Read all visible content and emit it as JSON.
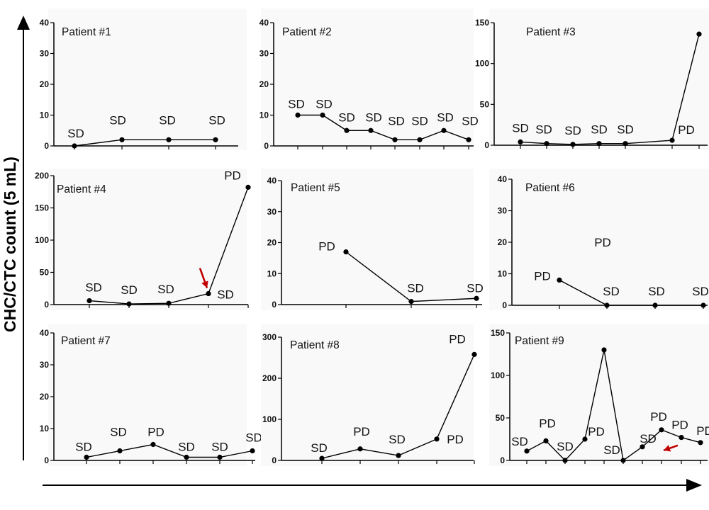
{
  "figure": {
    "ylabel": "CHC/CTC count (5 mL)",
    "colors": {
      "line": "#000000",
      "arrow": "#c00000",
      "panel_bg": "#f9f9f9"
    }
  },
  "chart_data": [
    {
      "type": "line",
      "title": "Patient #1",
      "ylim": [
        0,
        40
      ],
      "yticks": [
        0,
        10,
        20,
        30,
        40
      ],
      "x": [
        1,
        2,
        3,
        4
      ],
      "values": [
        0,
        2,
        2,
        2
      ],
      "labels": [
        "SD",
        "SD",
        "SD",
        "SD"
      ],
      "grid": false
    },
    {
      "type": "line",
      "title": "Patient #2",
      "ylim": [
        0,
        40
      ],
      "yticks": [
        0,
        10,
        20,
        30,
        40
      ],
      "x": [
        1,
        2,
        3,
        4,
        5,
        6,
        7,
        8
      ],
      "values": [
        10,
        10,
        5,
        5,
        2,
        2,
        5,
        2
      ],
      "labels": [
        "SD",
        "SD",
        "SD",
        "SD",
        "SD",
        "SD",
        "SD",
        "SD"
      ],
      "grid": false
    },
    {
      "type": "line",
      "title": "Patient #3",
      "ylim": [
        0,
        150
      ],
      "yticks": [
        0,
        50,
        100,
        150
      ],
      "x": [
        1,
        2,
        3,
        4,
        5,
        6,
        7
      ],
      "values": [
        4,
        2,
        1,
        2,
        2,
        6,
        136
      ],
      "labels": [
        "SD",
        "SD",
        "SD",
        "SD",
        "SD",
        "PD",
        "PD"
      ],
      "grid": false
    },
    {
      "type": "line",
      "title": "Patient #4",
      "ylim": [
        0,
        200
      ],
      "yticks": [
        0,
        50,
        100,
        150,
        200
      ],
      "x": [
        1,
        2,
        3,
        4,
        5
      ],
      "values": [
        6,
        1,
        2,
        17,
        182
      ],
      "labels": [
        "SD",
        "SD",
        "SD",
        "SD",
        "PD"
      ],
      "arrow_at_point": 4,
      "grid": false
    },
    {
      "type": "line",
      "title": "Patient #5",
      "ylim": [
        0,
        40
      ],
      "yticks": [
        0,
        10,
        20,
        30,
        40
      ],
      "x": [
        1,
        2,
        3
      ],
      "values": [
        17,
        1,
        2
      ],
      "labels": [
        "PD",
        "SD",
        "SD"
      ],
      "grid": false
    },
    {
      "type": "line",
      "title": "Patient #6",
      "ylim": [
        0,
        40
      ],
      "yticks": [
        0,
        10,
        20,
        30,
        40
      ],
      "x": [
        1,
        2,
        3,
        4
      ],
      "values": [
        8,
        0,
        0,
        0
      ],
      "labels": [
        "PD",
        "SD",
        "SD",
        "SD"
      ],
      "grid": false
    },
    {
      "type": "line",
      "title": "Patient #7",
      "ylim": [
        0,
        40
      ],
      "yticks": [
        0,
        10,
        20,
        30,
        40
      ],
      "x": [
        1,
        2,
        3,
        4,
        5,
        6
      ],
      "values": [
        1,
        3,
        5,
        1,
        1,
        3
      ],
      "labels": [
        "SD",
        "SD",
        "PD",
        "SD",
        "SD",
        "SD"
      ],
      "grid": false
    },
    {
      "type": "line",
      "title": "Patient #8",
      "ylim": [
        0,
        300
      ],
      "yticks": [
        0,
        100,
        200,
        300
      ],
      "x": [
        1,
        2,
        3,
        4,
        5
      ],
      "values": [
        5,
        28,
        12,
        52,
        258
      ],
      "labels": [
        "SD",
        "PD",
        "SD",
        "PD",
        "PD"
      ],
      "grid": false
    },
    {
      "type": "line",
      "title": "Patient #9",
      "ylim": [
        0,
        150
      ],
      "yticks": [
        0,
        50,
        100,
        150
      ],
      "x": [
        1,
        2,
        3,
        4,
        5,
        6,
        7,
        8,
        9,
        10
      ],
      "values": [
        11,
        23,
        0,
        25,
        130,
        0,
        16,
        36,
        27,
        21
      ],
      "labels": [
        "SD",
        "PD",
        "SD",
        "PD",
        "PD",
        "SD",
        "SD",
        "PD",
        "PD",
        "PD"
      ],
      "arrow_at_point": 7,
      "grid": false
    }
  ]
}
